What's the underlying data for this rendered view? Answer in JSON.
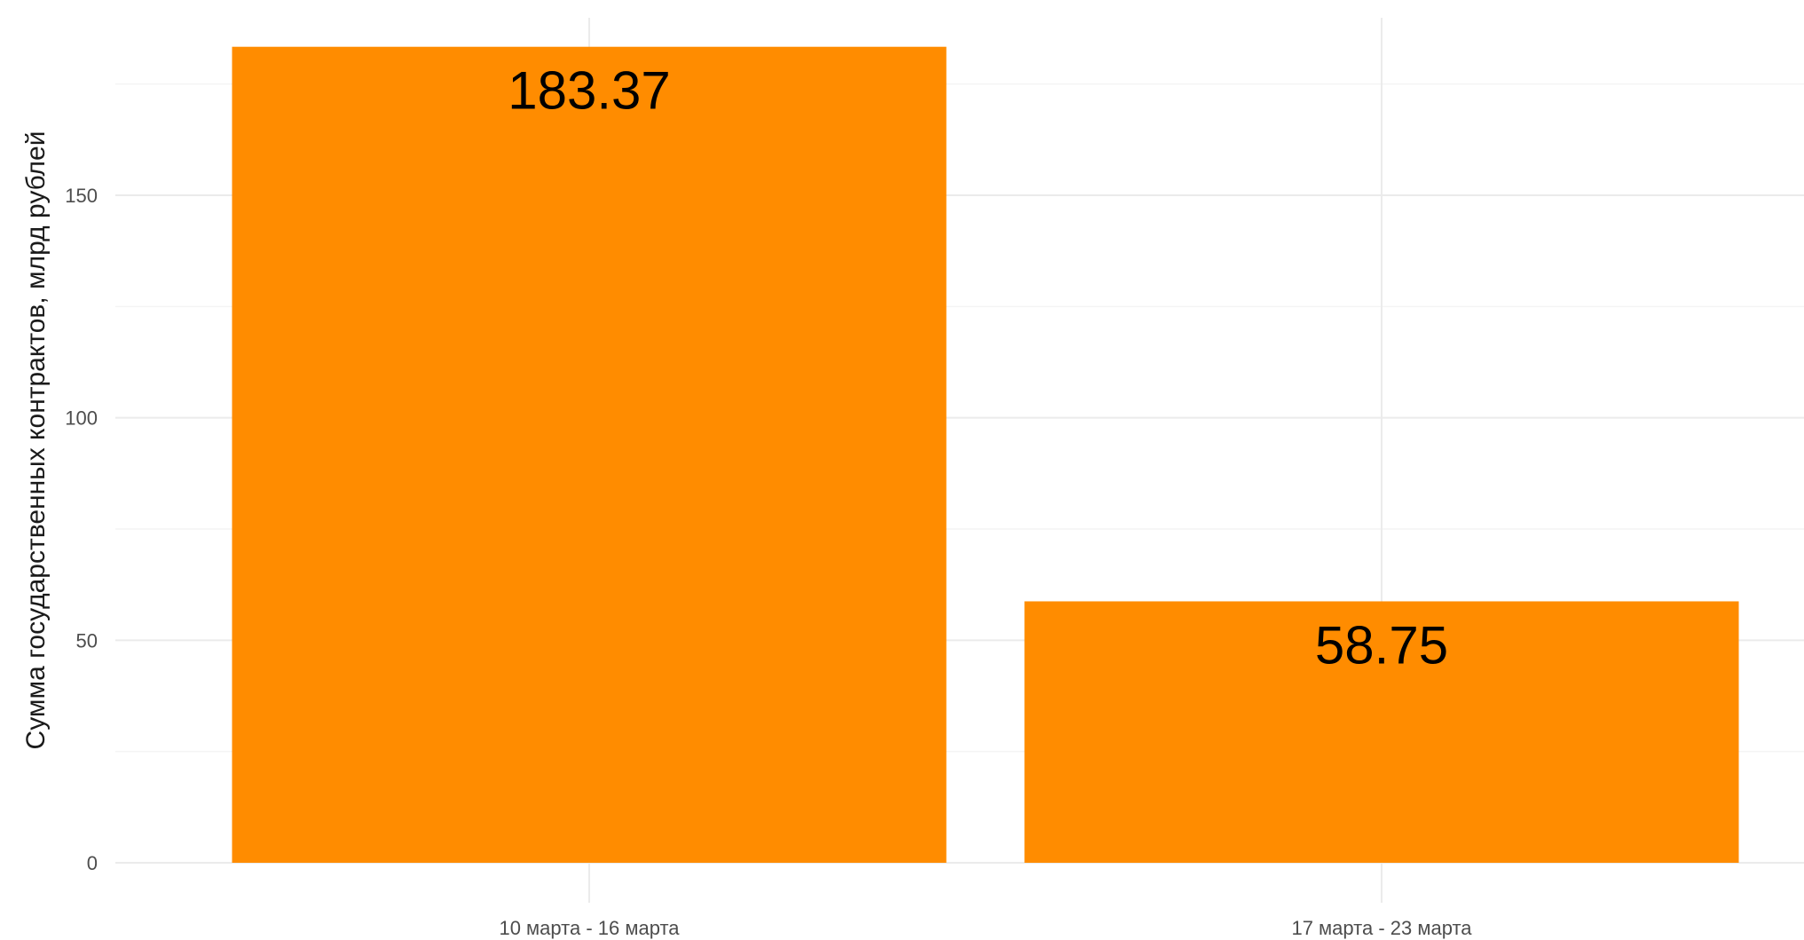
{
  "chart_data": {
    "type": "bar",
    "categories": [
      "10 марта - 16 марта",
      "17 марта - 23 марта"
    ],
    "values": [
      183.37,
      58.75
    ],
    "data_labels": [
      "183.37",
      "58.75"
    ],
    "title": "",
    "xlabel": "",
    "ylabel": "Сумма государственных контрактов, млрд рублей",
    "ylim": [
      0,
      190
    ],
    "yticks": [
      0,
      50,
      100,
      150
    ],
    "ytick_labels": [
      "0",
      "50",
      "100",
      "150"
    ],
    "grid": true,
    "legend": false,
    "colors": {
      "bar": "#FF8C00"
    }
  }
}
